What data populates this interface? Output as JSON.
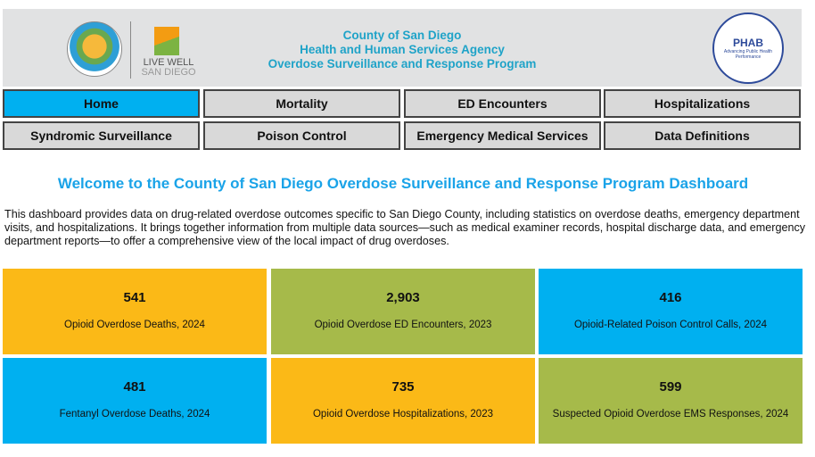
{
  "header": {
    "title_lines": [
      "County of San Diego",
      "Health and Human Services Agency",
      "Overdose Surveillance and Response Program"
    ],
    "livewell": [
      "LIVE WELL",
      "SAN DIEGO"
    ],
    "phab": {
      "name": "PHAB",
      "tagline": "Advancing Public Health Performance"
    }
  },
  "nav": [
    "Home",
    "Mortality",
    "ED Encounters",
    "Hospitalizations",
    "Syndromic Surveillance",
    "Poison Control",
    "Emergency Medical Services",
    "Data Definitions"
  ],
  "active_nav": "Home",
  "welcome": "Welcome to the County of San Diego Overdose Surveillance and Response Program Dashboard",
  "intro": "This dashboard provides data on drug-related overdose outcomes specific to San Diego County, including statistics on overdose deaths, emergency department visits, and hospitalizations. It brings together information from multiple data sources—such as medical examiner records, hospital discharge data, and emergency department reports—to offer a comprehensive view of the local impact of drug overdoses.",
  "cards": [
    {
      "value": "541",
      "label": "Opioid Overdose Deaths, 2024",
      "color": "#fbb917"
    },
    {
      "value": "2,903",
      "label": "Opioid Overdose ED Encounters, 2023",
      "color": "#a6ba4a"
    },
    {
      "value": "416",
      "label": "Opioid-Related Poison Control Calls, 2024",
      "color": "#00b0f0"
    },
    {
      "value": "481",
      "label": "Fentanyl Overdose Deaths, 2024",
      "color": "#00b0f0"
    },
    {
      "value": "735",
      "label": "Opioid Overdose Hospitalizations, 2023",
      "color": "#fbb917"
    },
    {
      "value": "599",
      "label": "Suspected Opioid Overdose EMS Responses, 2024",
      "color": "#a6ba4a"
    }
  ]
}
